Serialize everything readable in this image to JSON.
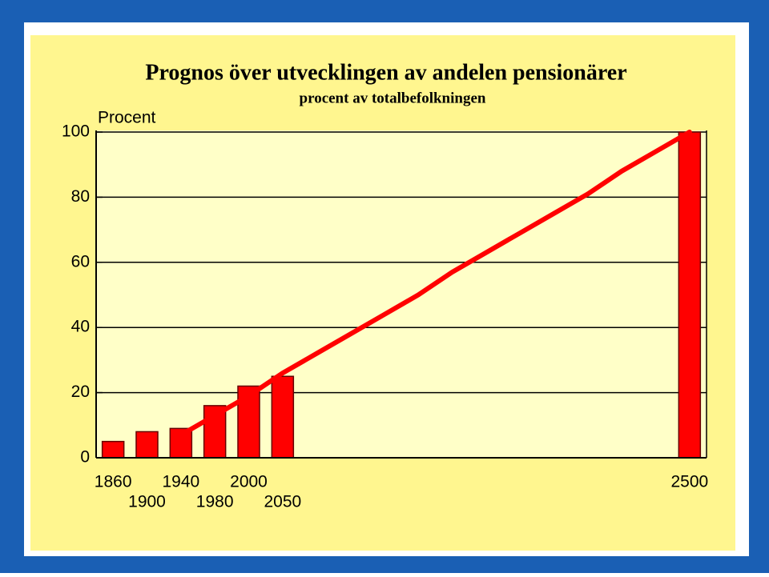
{
  "chart_data": {
    "type": "bar",
    "title": "Prognos över utvecklingen av andelen pensionärer",
    "subtitle": "procent av totalbefolkningen",
    "y_label": "Procent",
    "categories": [
      "1860",
      "1900",
      "1940",
      "1980",
      "2000",
      "2050",
      null,
      null,
      null,
      null,
      null,
      null,
      null,
      null,
      null,
      null,
      null,
      "2500"
    ],
    "series": [
      {
        "type": "bar",
        "color": "#ff0000",
        "values": [
          5,
          8,
          9,
          16,
          22,
          25,
          null,
          null,
          null,
          null,
          null,
          null,
          null,
          null,
          null,
          null,
          null,
          100
        ]
      },
      {
        "type": "line",
        "color": "#ff0000",
        "values": [
          null,
          null,
          7,
          13,
          19,
          26,
          32,
          38,
          44,
          50,
          57,
          63,
          69,
          75,
          81,
          88,
          94,
          100
        ]
      }
    ],
    "ylim": [
      0,
      100
    ],
    "yticks": [
      0,
      20,
      40,
      60,
      80,
      100
    ],
    "grid": true
  }
}
